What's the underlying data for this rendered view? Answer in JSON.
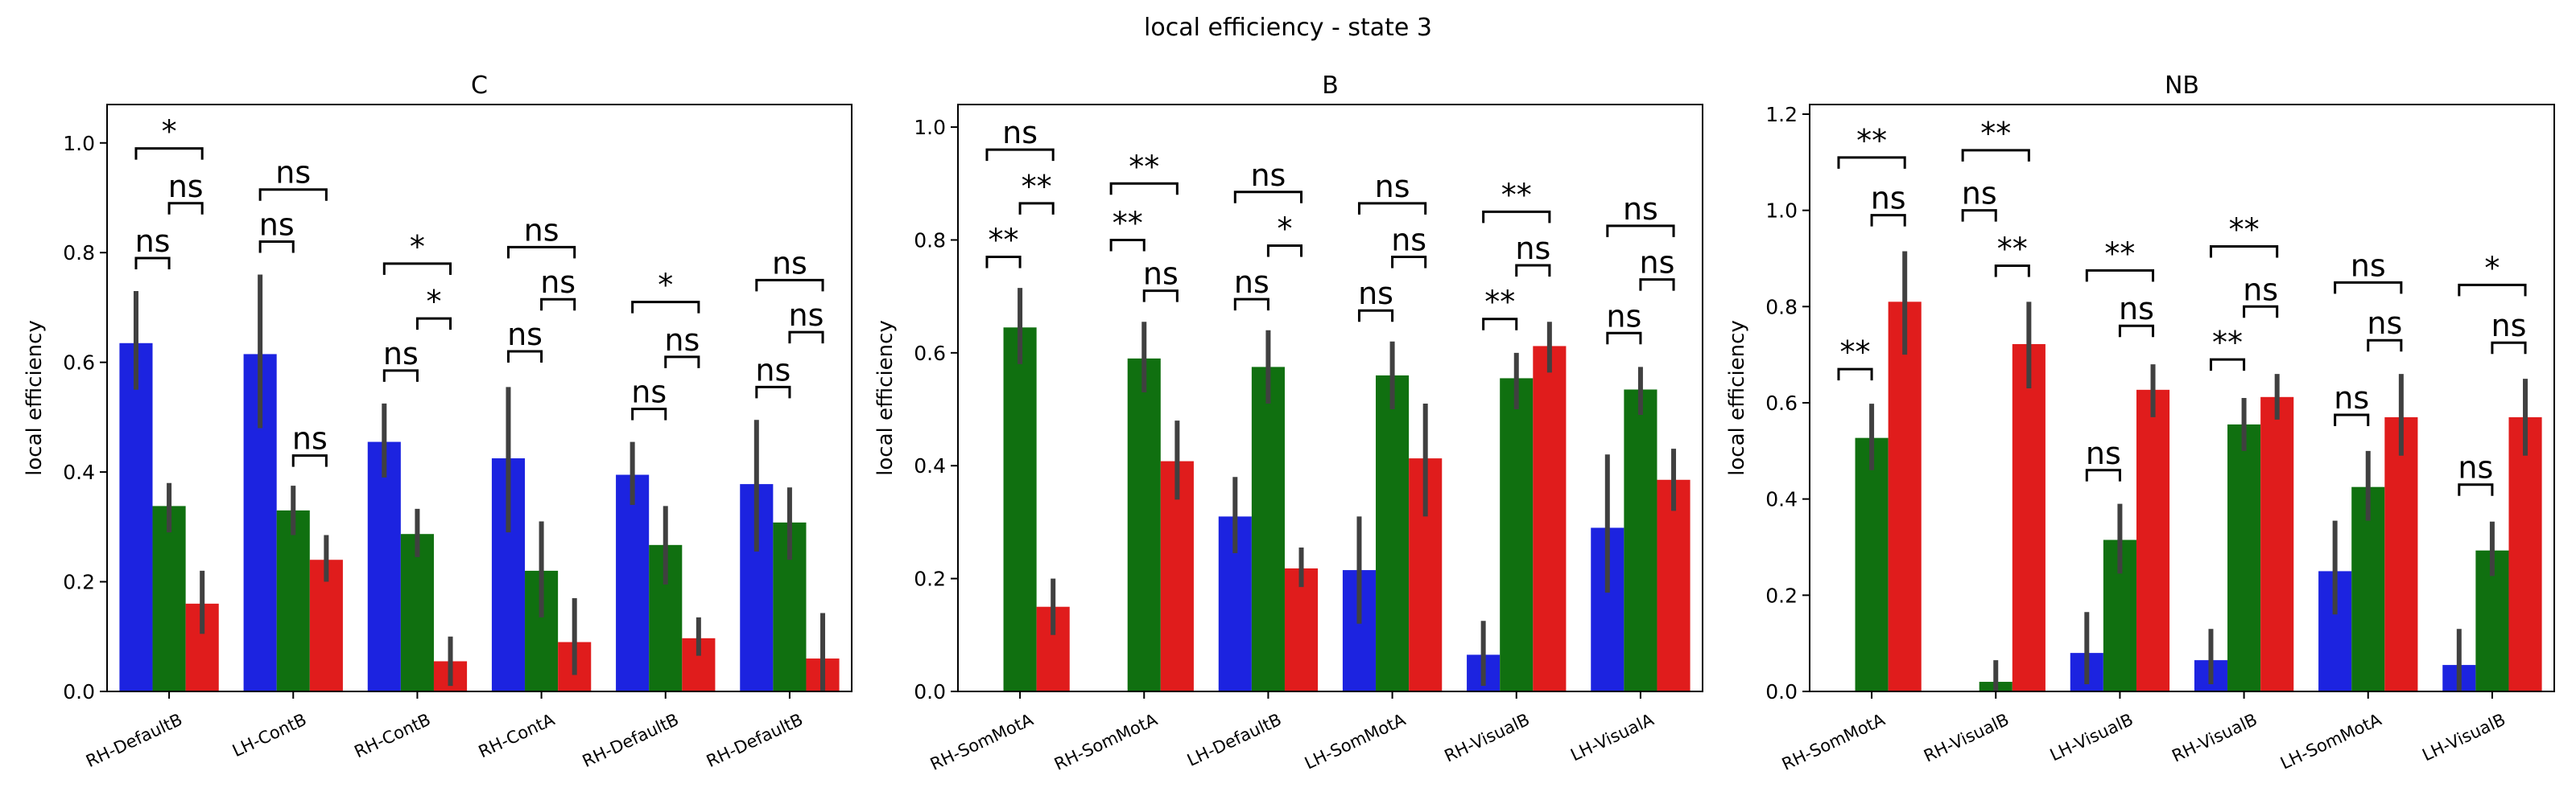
{
  "figure": {
    "title": "local efficiency - state 3"
  },
  "colors": {
    "blue": "#1c23e0",
    "green": "#107010",
    "red": "#e01c1c",
    "errorbar": "#404040"
  },
  "chart_data": [
    {
      "type": "bar",
      "title": "C",
      "xlabel": "",
      "ylabel": "local efficiency",
      "ylim": [
        0,
        1.07
      ],
      "yticks": [
        0.0,
        0.2,
        0.4,
        0.6,
        0.8,
        1.0
      ],
      "categories": [
        "RH-DefaultB",
        "LH-ContB",
        "RH-ContB",
        "RH-ContA",
        "RH-DefaultB",
        "RH-DefaultB"
      ],
      "series": [
        {
          "color": "blue",
          "values": [
            0.635,
            0.615,
            0.455,
            0.425,
            0.395,
            0.378
          ],
          "ci": [
            [
              0.55,
              0.73
            ],
            [
              0.48,
              0.76
            ],
            [
              0.39,
              0.525
            ],
            [
              0.29,
              0.555
            ],
            [
              0.34,
              0.455
            ],
            [
              0.255,
              0.495
            ]
          ]
        },
        {
          "color": "green",
          "values": [
            0.338,
            0.33,
            0.287,
            0.22,
            0.267,
            0.308
          ],
          "ci": [
            [
              0.29,
              0.38
            ],
            [
              0.285,
              0.375
            ],
            [
              0.245,
              0.333
            ],
            [
              0.135,
              0.31
            ],
            [
              0.195,
              0.338
            ],
            [
              0.24,
              0.372
            ]
          ]
        },
        {
          "color": "red",
          "values": [
            0.16,
            0.24,
            0.055,
            0.09,
            0.097,
            0.06
          ],
          "ci": [
            [
              0.105,
              0.22
            ],
            [
              0.2,
              0.285
            ],
            [
              0.01,
              0.1
            ],
            [
              0.03,
              0.17
            ],
            [
              0.065,
              0.135
            ],
            [
              0.0,
              0.143
            ]
          ]
        }
      ],
      "annotations": [
        {
          "group": 0,
          "from": 0,
          "to": 1,
          "y": 0.79,
          "label": "ns"
        },
        {
          "group": 0,
          "from": 1,
          "to": 2,
          "y": 0.89,
          "label": "ns"
        },
        {
          "group": 0,
          "from": 0,
          "to": 2,
          "y": 0.99,
          "label": "*"
        },
        {
          "group": 1,
          "from": 0,
          "to": 1,
          "y": 0.82,
          "label": "ns"
        },
        {
          "group": 1,
          "from": 1,
          "to": 2,
          "y": 0.43,
          "label": "ns"
        },
        {
          "group": 1,
          "from": 0,
          "to": 2,
          "y": 0.915,
          "label": "ns"
        },
        {
          "group": 2,
          "from": 0,
          "to": 1,
          "y": 0.585,
          "label": "ns"
        },
        {
          "group": 2,
          "from": 1,
          "to": 2,
          "y": 0.68,
          "label": "*"
        },
        {
          "group": 2,
          "from": 0,
          "to": 2,
          "y": 0.78,
          "label": "*"
        },
        {
          "group": 3,
          "from": 0,
          "to": 1,
          "y": 0.62,
          "label": "ns"
        },
        {
          "group": 3,
          "from": 1,
          "to": 2,
          "y": 0.715,
          "label": "ns"
        },
        {
          "group": 3,
          "from": 0,
          "to": 2,
          "y": 0.81,
          "label": "ns"
        },
        {
          "group": 4,
          "from": 0,
          "to": 1,
          "y": 0.515,
          "label": "ns"
        },
        {
          "group": 4,
          "from": 1,
          "to": 2,
          "y": 0.61,
          "label": "ns"
        },
        {
          "group": 4,
          "from": 0,
          "to": 2,
          "y": 0.71,
          "label": "*"
        },
        {
          "group": 5,
          "from": 0,
          "to": 1,
          "y": 0.555,
          "label": "ns"
        },
        {
          "group": 5,
          "from": 1,
          "to": 2,
          "y": 0.655,
          "label": "ns"
        },
        {
          "group": 5,
          "from": 0,
          "to": 2,
          "y": 0.75,
          "label": "ns"
        }
      ]
    },
    {
      "type": "bar",
      "title": "B",
      "xlabel": "",
      "ylabel": "local efficiency",
      "ylim": [
        0,
        1.04
      ],
      "yticks": [
        0.0,
        0.2,
        0.4,
        0.6,
        0.8,
        1.0
      ],
      "categories": [
        "RH-SomMotA",
        "RH-SomMotA",
        "LH-DefaultB",
        "LH-SomMotA",
        "RH-VisualB",
        "LH-VisualA"
      ],
      "series": [
        {
          "color": "blue",
          "values": [
            0.0,
            0.0,
            0.31,
            0.215,
            0.065,
            0.29
          ],
          "ci": [
            null,
            null,
            [
              0.245,
              0.38
            ],
            [
              0.12,
              0.31
            ],
            [
              0.01,
              0.125
            ],
            [
              0.175,
              0.42
            ]
          ]
        },
        {
          "color": "green",
          "values": [
            0.645,
            0.59,
            0.575,
            0.56,
            0.555,
            0.535
          ],
          "ci": [
            [
              0.58,
              0.715
            ],
            [
              0.53,
              0.655
            ],
            [
              0.51,
              0.64
            ],
            [
              0.5,
              0.62
            ],
            [
              0.5,
              0.6
            ],
            [
              0.49,
              0.575
            ]
          ]
        },
        {
          "color": "red",
          "values": [
            0.15,
            0.408,
            0.218,
            0.413,
            0.612,
            0.375
          ],
          "ci": [
            [
              0.1,
              0.2
            ],
            [
              0.34,
              0.48
            ],
            [
              0.185,
              0.255
            ],
            [
              0.31,
              0.51
            ],
            [
              0.565,
              0.655
            ],
            [
              0.32,
              0.43
            ]
          ]
        }
      ],
      "annotations": [
        {
          "group": 0,
          "from": 0,
          "to": 1,
          "y": 0.77,
          "label": "**"
        },
        {
          "group": 0,
          "from": 1,
          "to": 2,
          "y": 0.865,
          "label": "**"
        },
        {
          "group": 0,
          "from": 0,
          "to": 2,
          "y": 0.96,
          "label": "ns"
        },
        {
          "group": 1,
          "from": 0,
          "to": 1,
          "y": 0.8,
          "label": "**"
        },
        {
          "group": 1,
          "from": 1,
          "to": 2,
          "y": 0.71,
          "label": "ns"
        },
        {
          "group": 1,
          "from": 0,
          "to": 2,
          "y": 0.9,
          "label": "**"
        },
        {
          "group": 2,
          "from": 0,
          "to": 1,
          "y": 0.695,
          "label": "ns"
        },
        {
          "group": 2,
          "from": 1,
          "to": 2,
          "y": 0.79,
          "label": "*"
        },
        {
          "group": 2,
          "from": 0,
          "to": 2,
          "y": 0.885,
          "label": "ns"
        },
        {
          "group": 3,
          "from": 0,
          "to": 1,
          "y": 0.675,
          "label": "ns"
        },
        {
          "group": 3,
          "from": 1,
          "to": 2,
          "y": 0.77,
          "label": "ns"
        },
        {
          "group": 3,
          "from": 0,
          "to": 2,
          "y": 0.865,
          "label": "ns"
        },
        {
          "group": 4,
          "from": 0,
          "to": 1,
          "y": 0.66,
          "label": "**"
        },
        {
          "group": 4,
          "from": 1,
          "to": 2,
          "y": 0.755,
          "label": "ns"
        },
        {
          "group": 4,
          "from": 0,
          "to": 2,
          "y": 0.85,
          "label": "**"
        },
        {
          "group": 5,
          "from": 0,
          "to": 1,
          "y": 0.635,
          "label": "ns"
        },
        {
          "group": 5,
          "from": 1,
          "to": 2,
          "y": 0.73,
          "label": "ns"
        },
        {
          "group": 5,
          "from": 0,
          "to": 2,
          "y": 0.825,
          "label": "ns"
        }
      ]
    },
    {
      "type": "bar",
      "title": "NB",
      "xlabel": "",
      "ylabel": "local efficiency",
      "ylim": [
        0,
        1.22
      ],
      "yticks": [
        0.0,
        0.2,
        0.4,
        0.6,
        0.8,
        1.0,
        1.2
      ],
      "categories": [
        "RH-SomMotA",
        "RH-VisualB",
        "LH-VisualB",
        "RH-VisualB",
        "LH-SomMotA",
        "LH-VisualB"
      ],
      "series": [
        {
          "color": "blue",
          "values": [
            0.0,
            0.0,
            0.08,
            0.065,
            0.25,
            0.055
          ],
          "ci": [
            null,
            null,
            [
              0.015,
              0.165
            ],
            [
              0.015,
              0.13
            ],
            [
              0.16,
              0.355
            ],
            [
              0.0,
              0.13
            ]
          ]
        },
        {
          "color": "green",
          "values": [
            0.527,
            0.02,
            0.315,
            0.555,
            0.425,
            0.293
          ],
          "ci": [
            [
              0.46,
              0.598
            ],
            [
              0.0,
              0.065
            ],
            [
              0.245,
              0.39
            ],
            [
              0.5,
              0.61
            ],
            [
              0.355,
              0.5
            ],
            [
              0.24,
              0.353
            ]
          ]
        },
        {
          "color": "red",
          "values": [
            0.81,
            0.722,
            0.627,
            0.612,
            0.57,
            0.57
          ],
          "ci": [
            [
              0.7,
              0.915
            ],
            [
              0.63,
              0.81
            ],
            [
              0.57,
              0.68
            ],
            [
              0.565,
              0.66
            ],
            [
              0.49,
              0.66
            ],
            [
              0.49,
              0.65
            ]
          ]
        }
      ],
      "annotations": [
        {
          "group": 0,
          "from": 0,
          "to": 1,
          "y": 0.67,
          "label": "**"
        },
        {
          "group": 0,
          "from": 1,
          "to": 2,
          "y": 0.99,
          "label": "ns"
        },
        {
          "group": 0,
          "from": 0,
          "to": 2,
          "y": 1.11,
          "label": "**"
        },
        {
          "group": 1,
          "from": 0,
          "to": 1,
          "y": 1.0,
          "label": "ns"
        },
        {
          "group": 1,
          "from": 1,
          "to": 2,
          "y": 0.885,
          "label": "**"
        },
        {
          "group": 1,
          "from": 0,
          "to": 2,
          "y": 1.125,
          "label": "**"
        },
        {
          "group": 2,
          "from": 0,
          "to": 1,
          "y": 0.46,
          "label": "ns"
        },
        {
          "group": 2,
          "from": 1,
          "to": 2,
          "y": 0.76,
          "label": "ns"
        },
        {
          "group": 2,
          "from": 0,
          "to": 2,
          "y": 0.875,
          "label": "**"
        },
        {
          "group": 3,
          "from": 0,
          "to": 1,
          "y": 0.69,
          "label": "**"
        },
        {
          "group": 3,
          "from": 1,
          "to": 2,
          "y": 0.8,
          "label": "ns"
        },
        {
          "group": 3,
          "from": 0,
          "to": 2,
          "y": 0.925,
          "label": "**"
        },
        {
          "group": 4,
          "from": 0,
          "to": 1,
          "y": 0.575,
          "label": "ns"
        },
        {
          "group": 4,
          "from": 1,
          "to": 2,
          "y": 0.73,
          "label": "ns"
        },
        {
          "group": 4,
          "from": 0,
          "to": 2,
          "y": 0.85,
          "label": "ns"
        },
        {
          "group": 5,
          "from": 0,
          "to": 1,
          "y": 0.43,
          "label": "ns"
        },
        {
          "group": 5,
          "from": 1,
          "to": 2,
          "y": 0.725,
          "label": "ns"
        },
        {
          "group": 5,
          "from": 0,
          "to": 2,
          "y": 0.845,
          "label": "*"
        }
      ]
    }
  ]
}
